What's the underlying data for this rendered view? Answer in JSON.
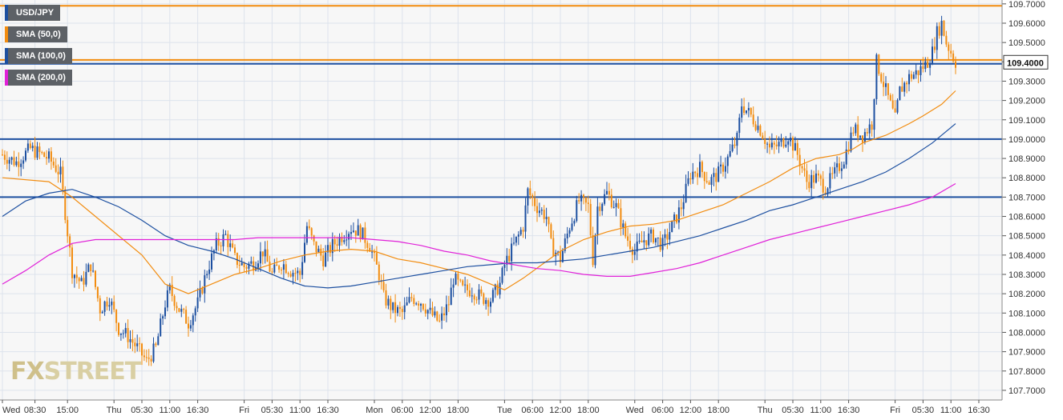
{
  "chart_data": {
    "type": "candlestick",
    "symbol": "USD/JPY",
    "ylim": [
      107.65,
      109.72
    ],
    "y_ticks": [
      "109.7000",
      "109.6000",
      "109.5000",
      "109.4000",
      "109.3000",
      "109.2000",
      "109.1000",
      "109.0000",
      "108.9000",
      "108.8000",
      "108.7000",
      "108.6000",
      "108.5000",
      "108.4000",
      "108.3000",
      "108.2000",
      "108.1000",
      "108.0000",
      "107.9000",
      "107.8000",
      "107.7000"
    ],
    "x_ticks": [
      "Wed",
      "08:30",
      "15:00",
      "Thu",
      "05:30",
      "11:00",
      "16:30",
      "Fri",
      "05:30",
      "11:00",
      "16:30",
      "Mon",
      "06:00",
      "12:00",
      "18:00",
      "Tue",
      "06:00",
      "12:00",
      "18:00",
      "Wed",
      "06:00",
      "12:00",
      "18:00",
      "Thu",
      "05:30",
      "11:00",
      "16:30",
      "Fri",
      "05:30",
      "11:00",
      "16:30"
    ],
    "x_tick_bars": [
      0,
      14,
      28,
      48,
      60,
      72,
      84,
      104,
      116,
      128,
      140,
      160,
      172,
      184,
      196,
      216,
      228,
      240,
      252,
      272,
      284,
      296,
      308,
      328,
      340,
      352,
      364,
      384,
      396,
      408,
      420
    ],
    "last_price_label": "109.4000",
    "last_price": 109.4,
    "horizontal_levels": [
      {
        "value": 109.69,
        "color": "#f28c0f"
      },
      {
        "value": 109.41,
        "color": "#f28c0f"
      },
      {
        "value": 109.39,
        "color": "#1c4fa0"
      },
      {
        "value": 109.0,
        "color": "#1c4fa0"
      },
      {
        "value": 108.7,
        "color": "#1c4fa0"
      }
    ],
    "price_path": [
      [
        0,
        108.92
      ],
      [
        6,
        108.88
      ],
      [
        12,
        108.95
      ],
      [
        20,
        108.9
      ],
      [
        25,
        108.82
      ],
      [
        27,
        108.62
      ],
      [
        30,
        108.32
      ],
      [
        34,
        108.25
      ],
      [
        38,
        108.35
      ],
      [
        42,
        108.12
      ],
      [
        46,
        108.18
      ],
      [
        50,
        108.02
      ],
      [
        54,
        107.98
      ],
      [
        58,
        107.92
      ],
      [
        62,
        107.85
      ],
      [
        66,
        107.92
      ],
      [
        70,
        108.15
      ],
      [
        72,
        108.22
      ],
      [
        76,
        108.12
      ],
      [
        80,
        108.05
      ],
      [
        84,
        108.15
      ],
      [
        88,
        108.32
      ],
      [
        92,
        108.45
      ],
      [
        96,
        108.5
      ],
      [
        100,
        108.38
      ],
      [
        104,
        108.34
      ],
      [
        108,
        108.36
      ],
      [
        112,
        108.42
      ],
      [
        116,
        108.3
      ],
      [
        120,
        108.36
      ],
      [
        124,
        108.32
      ],
      [
        128,
        108.3
      ],
      [
        131,
        108.55
      ],
      [
        134,
        108.45
      ],
      [
        138,
        108.38
      ],
      [
        142,
        108.45
      ],
      [
        146,
        108.5
      ],
      [
        150,
        108.54
      ],
      [
        154,
        108.52
      ],
      [
        158,
        108.45
      ],
      [
        162,
        108.3
      ],
      [
        164,
        108.18
      ],
      [
        168,
        108.12
      ],
      [
        172,
        108.1
      ],
      [
        176,
        108.18
      ],
      [
        180,
        108.16
      ],
      [
        184,
        108.1
      ],
      [
        188,
        108.05
      ],
      [
        192,
        108.15
      ],
      [
        194,
        108.28
      ],
      [
        198,
        108.22
      ],
      [
        202,
        108.22
      ],
      [
        206,
        108.18
      ],
      [
        210,
        108.17
      ],
      [
        214,
        108.25
      ],
      [
        216,
        108.35
      ],
      [
        220,
        108.45
      ],
      [
        224,
        108.55
      ],
      [
        226,
        108.73
      ],
      [
        230,
        108.65
      ],
      [
        234,
        108.6
      ],
      [
        236,
        108.45
      ],
      [
        240,
        108.38
      ],
      [
        244,
        108.55
      ],
      [
        248,
        108.68
      ],
      [
        252,
        108.65
      ],
      [
        254,
        108.38
      ],
      [
        256,
        108.65
      ],
      [
        260,
        108.72
      ],
      [
        264,
        108.65
      ],
      [
        268,
        108.5
      ],
      [
        272,
        108.42
      ],
      [
        276,
        108.48
      ],
      [
        280,
        108.5
      ],
      [
        284,
        108.45
      ],
      [
        288,
        108.55
      ],
      [
        292,
        108.65
      ],
      [
        296,
        108.82
      ],
      [
        300,
        108.85
      ],
      [
        304,
        108.78
      ],
      [
        308,
        108.82
      ],
      [
        312,
        108.9
      ],
      [
        316,
        109.0
      ],
      [
        318,
        109.18
      ],
      [
        322,
        109.12
      ],
      [
        326,
        109.05
      ],
      [
        330,
        108.95
      ],
      [
        334,
        108.97
      ],
      [
        338,
        109.02
      ],
      [
        342,
        108.92
      ],
      [
        346,
        108.78
      ],
      [
        350,
        108.8
      ],
      [
        354,
        108.75
      ],
      [
        358,
        108.82
      ],
      [
        362,
        108.9
      ],
      [
        366,
        109.05
      ],
      [
        370,
        109.02
      ],
      [
        374,
        109.08
      ],
      [
        376,
        109.4
      ],
      [
        380,
        109.25
      ],
      [
        384,
        109.1
      ],
      [
        386,
        109.25
      ],
      [
        390,
        109.32
      ],
      [
        394,
        109.35
      ],
      [
        398,
        109.4
      ],
      [
        400,
        109.45
      ],
      [
        402,
        109.55
      ],
      [
        404,
        109.6
      ],
      [
        406,
        109.5
      ],
      [
        408,
        109.45
      ],
      [
        410,
        109.4
      ]
    ],
    "series": [
      {
        "name": "SMA (50,0)",
        "color": "#f28c0f",
        "points": [
          [
            0,
            108.8
          ],
          [
            20,
            108.78
          ],
          [
            30,
            108.7
          ],
          [
            40,
            108.6
          ],
          [
            60,
            108.4
          ],
          [
            70,
            108.25
          ],
          [
            80,
            108.2
          ],
          [
            90,
            108.25
          ],
          [
            100,
            108.3
          ],
          [
            110,
            108.33
          ],
          [
            120,
            108.37
          ],
          [
            130,
            108.4
          ],
          [
            140,
            108.42
          ],
          [
            150,
            108.43
          ],
          [
            160,
            108.42
          ],
          [
            170,
            108.38
          ],
          [
            180,
            108.36
          ],
          [
            190,
            108.33
          ],
          [
            200,
            108.3
          ],
          [
            210,
            108.25
          ],
          [
            216,
            108.22
          ],
          [
            224,
            108.28
          ],
          [
            232,
            108.35
          ],
          [
            240,
            108.42
          ],
          [
            250,
            108.48
          ],
          [
            260,
            108.52
          ],
          [
            270,
            108.55
          ],
          [
            280,
            108.56
          ],
          [
            290,
            108.58
          ],
          [
            300,
            108.62
          ],
          [
            310,
            108.66
          ],
          [
            320,
            108.72
          ],
          [
            330,
            108.78
          ],
          [
            340,
            108.85
          ],
          [
            350,
            108.9
          ],
          [
            360,
            108.92
          ],
          [
            366,
            108.95
          ],
          [
            370,
            108.98
          ],
          [
            380,
            109.02
          ],
          [
            390,
            109.08
          ],
          [
            396,
            109.12
          ],
          [
            404,
            109.18
          ],
          [
            410,
            109.25
          ]
        ]
      },
      {
        "name": "SMA (100,0)",
        "color": "#1c4fa0",
        "points": [
          [
            0,
            108.6
          ],
          [
            10,
            108.68
          ],
          [
            20,
            108.72
          ],
          [
            30,
            108.74
          ],
          [
            40,
            108.7
          ],
          [
            50,
            108.65
          ],
          [
            60,
            108.58
          ],
          [
            70,
            108.5
          ],
          [
            80,
            108.45
          ],
          [
            90,
            108.42
          ],
          [
            100,
            108.38
          ],
          [
            110,
            108.33
          ],
          [
            120,
            108.28
          ],
          [
            130,
            108.24
          ],
          [
            140,
            108.23
          ],
          [
            150,
            108.24
          ],
          [
            160,
            108.26
          ],
          [
            170,
            108.28
          ],
          [
            180,
            108.3
          ],
          [
            190,
            108.32
          ],
          [
            200,
            108.34
          ],
          [
            210,
            108.35
          ],
          [
            220,
            108.36
          ],
          [
            230,
            108.36
          ],
          [
            240,
            108.37
          ],
          [
            250,
            108.38
          ],
          [
            260,
            108.4
          ],
          [
            270,
            108.42
          ],
          [
            280,
            108.44
          ],
          [
            290,
            108.47
          ],
          [
            300,
            108.5
          ],
          [
            310,
            108.54
          ],
          [
            320,
            108.58
          ],
          [
            330,
            108.63
          ],
          [
            340,
            108.66
          ],
          [
            350,
            108.7
          ],
          [
            360,
            108.74
          ],
          [
            370,
            108.78
          ],
          [
            380,
            108.83
          ],
          [
            390,
            108.9
          ],
          [
            400,
            108.98
          ],
          [
            410,
            109.08
          ]
        ]
      },
      {
        "name": "SMA (200,0)",
        "color": "#e020d8",
        "points": [
          [
            0,
            108.25
          ],
          [
            10,
            108.32
          ],
          [
            20,
            108.4
          ],
          [
            30,
            108.46
          ],
          [
            40,
            108.48
          ],
          [
            50,
            108.48
          ],
          [
            60,
            108.48
          ],
          [
            70,
            108.48
          ],
          [
            80,
            108.48
          ],
          [
            90,
            108.48
          ],
          [
            100,
            108.48
          ],
          [
            110,
            108.49
          ],
          [
            120,
            108.49
          ],
          [
            130,
            108.49
          ],
          [
            140,
            108.49
          ],
          [
            150,
            108.49
          ],
          [
            160,
            108.48
          ],
          [
            170,
            108.47
          ],
          [
            180,
            108.45
          ],
          [
            190,
            108.42
          ],
          [
            200,
            108.4
          ],
          [
            210,
            108.37
          ],
          [
            220,
            108.35
          ],
          [
            230,
            108.33
          ],
          [
            240,
            108.32
          ],
          [
            250,
            108.3
          ],
          [
            260,
            108.29
          ],
          [
            270,
            108.29
          ],
          [
            280,
            108.31
          ],
          [
            290,
            108.33
          ],
          [
            300,
            108.36
          ],
          [
            310,
            108.4
          ],
          [
            320,
            108.44
          ],
          [
            330,
            108.48
          ],
          [
            340,
            108.51
          ],
          [
            350,
            108.54
          ],
          [
            360,
            108.57
          ],
          [
            370,
            108.6
          ],
          [
            380,
            108.63
          ],
          [
            390,
            108.66
          ],
          [
            400,
            108.7
          ],
          [
            410,
            108.77
          ]
        ]
      }
    ]
  },
  "legend": [
    {
      "label": "USD/JPY",
      "color": "#1c4fa0"
    },
    {
      "label": "SMA (50,0)",
      "color": "#f28c0f"
    },
    {
      "label": "SMA (100,0)",
      "color": "#1c4fa0"
    },
    {
      "label": "SMA (200,0)",
      "color": "#e020d8"
    }
  ],
  "watermark": {
    "fx": "FX",
    "rest": "STREET"
  },
  "colors": {
    "up": "#1c4fa0",
    "down": "#f28c0f",
    "grid": "#dde3ec",
    "plot_bg": "#f7f7f7",
    "axis_text": "#333333",
    "price_box": "#ffffff",
    "price_box_border": "#333333"
  }
}
